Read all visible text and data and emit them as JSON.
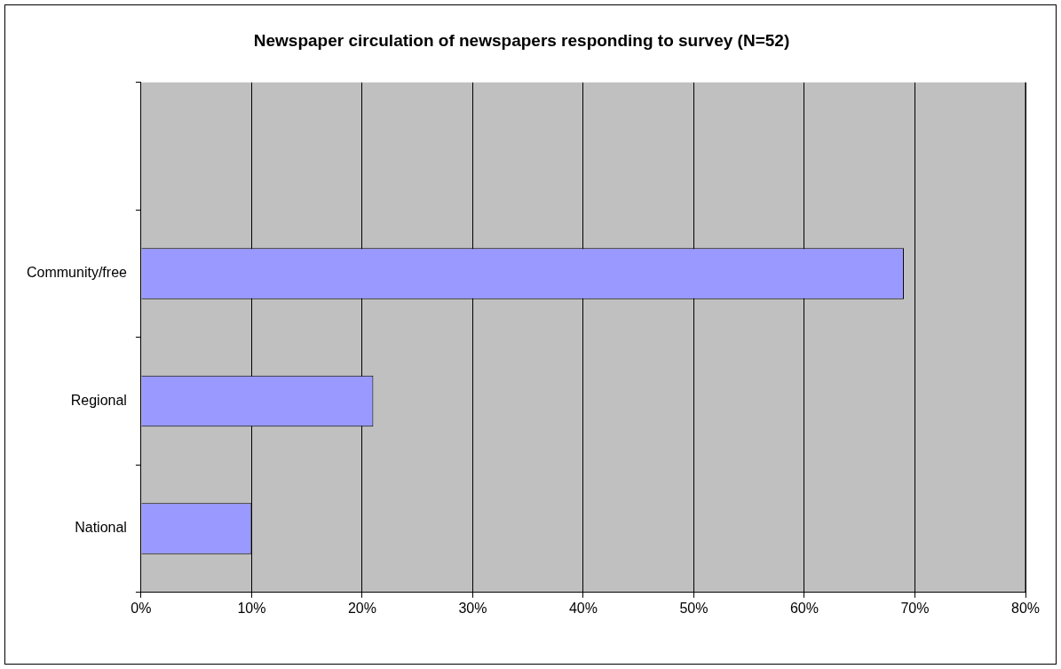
{
  "chart_data": {
    "type": "bar",
    "orientation": "horizontal",
    "title": "Newspaper circulation of newspapers responding to survey (N=52)",
    "categories": [
      null,
      "Community/free",
      "Regional",
      "National"
    ],
    "values": [
      null,
      69,
      21,
      10
    ],
    "color": "#9999ff",
    "xlim": [
      0,
      80
    ],
    "xticks": [
      {
        "value": 0,
        "label": "0%"
      },
      {
        "value": 10,
        "label": "10%"
      },
      {
        "value": 20,
        "label": "20%"
      },
      {
        "value": 30,
        "label": "30%"
      },
      {
        "value": 40,
        "label": "40%"
      },
      {
        "value": 50,
        "label": "50%"
      },
      {
        "value": 60,
        "label": "60%"
      },
      {
        "value": 70,
        "label": "70%"
      },
      {
        "value": 80,
        "label": "80%"
      }
    ],
    "grid": "x",
    "legend": false
  }
}
